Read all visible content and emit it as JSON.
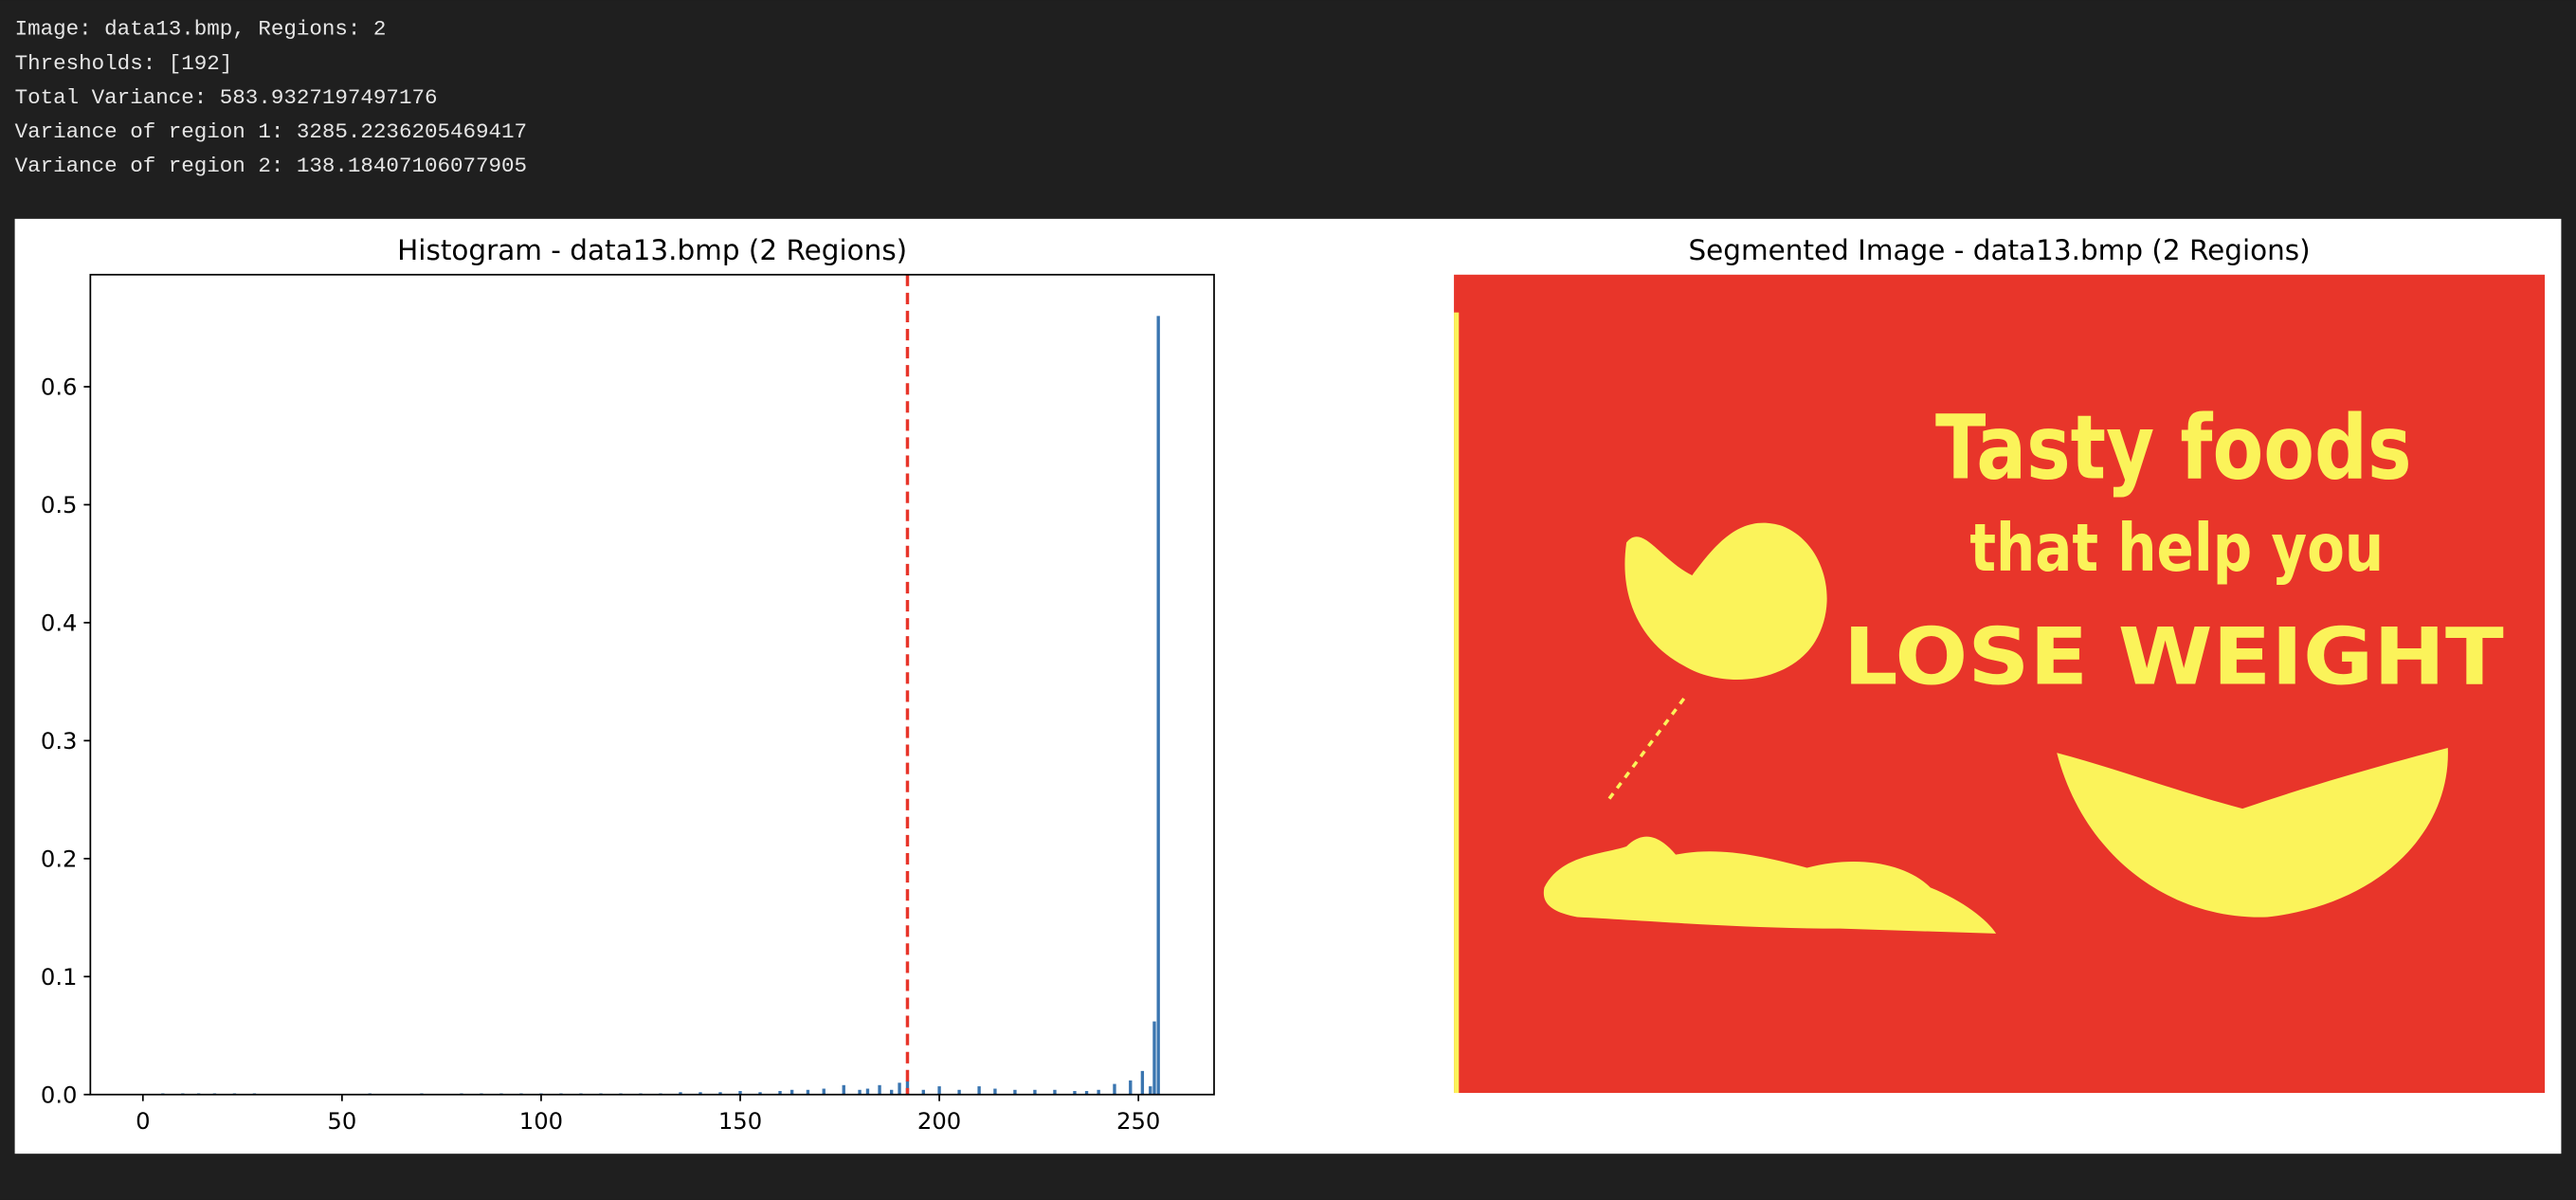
{
  "output_lines": [
    "Image: data13.bmp, Regions: 2",
    "Thresholds: [192]",
    "Total Variance: 583.9327197497176",
    "Variance of region 1: 3285.2236205469417",
    "Variance of region 2: 138.18407106077905"
  ],
  "chart_data": {
    "type": "bar",
    "title": "Histogram - data13.bmp (2 Regions)",
    "color": "#3a75b0",
    "x": [
      5,
      10,
      14,
      18,
      23,
      28,
      57,
      70,
      80,
      85,
      90,
      95,
      100,
      105,
      110,
      115,
      120,
      125,
      130,
      135,
      140,
      145,
      150,
      155,
      160,
      163,
      167,
      171,
      176,
      180,
      182,
      185,
      188,
      190,
      192,
      196,
      200,
      205,
      210,
      214,
      219,
      224,
      229,
      234,
      237,
      240,
      244,
      248,
      251,
      253,
      254,
      255
    ],
    "values": [
      0.001,
      0.001,
      0.001,
      0.001,
      0.001,
      0.001,
      0.001,
      0.001,
      0.001,
      0.001,
      0.001,
      0.001,
      0.001,
      0.001,
      0.001,
      0.001,
      0.001,
      0.001,
      0.001,
      0.002,
      0.002,
      0.002,
      0.003,
      0.002,
      0.003,
      0.004,
      0.004,
      0.005,
      0.008,
      0.004,
      0.005,
      0.008,
      0.004,
      0.01,
      0.012,
      0.004,
      0.007,
      0.004,
      0.007,
      0.005,
      0.004,
      0.004,
      0.004,
      0.003,
      0.003,
      0.004,
      0.009,
      0.012,
      0.02,
      0.007,
      0.062,
      0.66
    ],
    "threshold_lines": [
      192
    ],
    "threshold_color": "#e8352a",
    "xlim": [
      -13.2,
      269
    ],
    "xticks": [
      0,
      50,
      100,
      150,
      200,
      250
    ],
    "ylim": [
      0,
      0.695
    ],
    "yticks": [
      {
        "value": 0,
        "label": "0.0"
      },
      {
        "value": 0.1,
        "label": "0.1"
      },
      {
        "value": 0.2,
        "label": "0.2"
      },
      {
        "value": 0.3,
        "label": "0.3"
      },
      {
        "value": 0.4,
        "label": "0.4"
      },
      {
        "value": 0.5,
        "label": "0.5"
      },
      {
        "value": 0.6,
        "label": "0.6"
      }
    ]
  },
  "segmented_image": {
    "title": "Segmented Image - data13.bmp (2 Regions)",
    "texts": [
      "Tasty foods",
      "that help you",
      "LOSE WEIGHT"
    ]
  }
}
